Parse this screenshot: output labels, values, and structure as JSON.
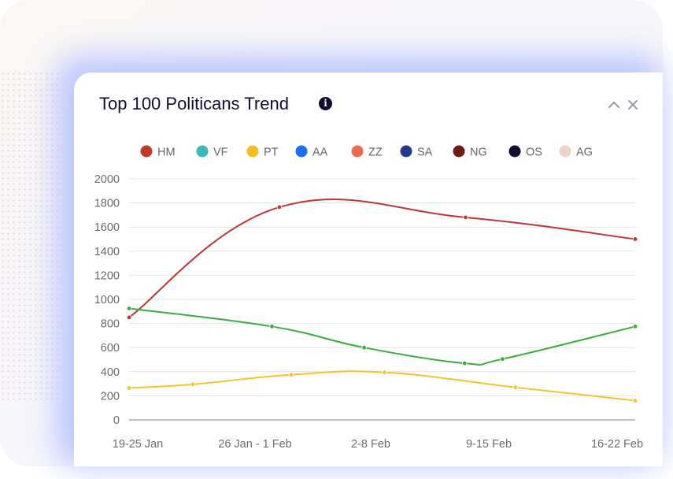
{
  "widget": {
    "title": "Top 100 Politicans Trend",
    "info_icon": "info-icon",
    "collapse_icon": "chevron-up-icon",
    "close_icon": "close-icon"
  },
  "chart_data": {
    "type": "line",
    "title": "Top 100 Politicans Trend",
    "categories": [
      "19-25 Jan",
      "26 Jan - 1 Feb",
      "2-8 Feb",
      "9-15 Feb",
      "16-22 Feb"
    ],
    "ylim": [
      0,
      2000
    ],
    "yticks": [
      "0",
      "200",
      "400",
      "600",
      "800",
      "1000",
      "1200",
      "1400",
      "1600",
      "1800",
      "2000"
    ],
    "grid": true,
    "legend_position": "top",
    "legend": [
      {
        "name": "HM",
        "color": "#c0392b"
      },
      {
        "name": "VF",
        "color": "#3cb8b7"
      },
      {
        "name": "PT",
        "color": "#f5bd20"
      },
      {
        "name": "AA",
        "color": "#1a6ef5"
      },
      {
        "name": "ZZ",
        "color": "#ee6a4a"
      },
      {
        "name": "SA",
        "color": "#283a8f"
      },
      {
        "name": "NG",
        "color": "#6e1e10"
      },
      {
        "name": "OS",
        "color": "#150a30"
      },
      {
        "name": "AG",
        "color": "#f0d1c6"
      }
    ],
    "lines": [
      {
        "color": "#bb3636",
        "points": [
          [
            0,
            850
          ],
          [
            1.63,
            1765
          ],
          [
            3.65,
            1680
          ],
          [
            5.49,
            1500
          ]
        ]
      },
      {
        "color": "#38ad3c",
        "points": [
          [
            0,
            925
          ],
          [
            1.55,
            775
          ],
          [
            2.55,
            600
          ],
          [
            3.64,
            470
          ],
          [
            4.05,
            505
          ],
          [
            5.49,
            775
          ]
        ]
      },
      {
        "color": "#f6c22e",
        "points": [
          [
            0,
            265
          ],
          [
            0.69,
            295
          ],
          [
            1.76,
            375
          ],
          [
            2.77,
            395
          ],
          [
            4.19,
            270
          ],
          [
            5.49,
            160
          ]
        ]
      }
    ]
  }
}
